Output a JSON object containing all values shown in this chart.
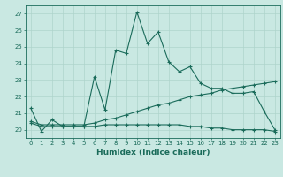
{
  "xlabel": "Humidex (Indice chaleur)",
  "xlim": [
    -0.5,
    23.5
  ],
  "ylim": [
    19.5,
    27.5
  ],
  "yticks": [
    20,
    21,
    22,
    23,
    24,
    25,
    26,
    27
  ],
  "xticks": [
    0,
    1,
    2,
    3,
    4,
    5,
    6,
    7,
    8,
    9,
    10,
    11,
    12,
    13,
    14,
    15,
    16,
    17,
    18,
    19,
    20,
    21,
    22,
    23
  ],
  "bg_color": "#c9e8e2",
  "line_color": "#1a6b5a",
  "grid_color": "#aed4cc",
  "line1_x": [
    0,
    1,
    2,
    3,
    4,
    5,
    6,
    7,
    8,
    9,
    10,
    11,
    12,
    13,
    14,
    15,
    16,
    17,
    18,
    19,
    20,
    21,
    22,
    23
  ],
  "line1_y": [
    21.3,
    19.9,
    20.6,
    20.2,
    20.2,
    20.2,
    23.2,
    21.2,
    24.8,
    24.6,
    27.1,
    25.2,
    25.9,
    24.1,
    23.5,
    23.8,
    22.8,
    22.5,
    22.5,
    22.2,
    22.2,
    22.3,
    21.1,
    20.0
  ],
  "line2_x": [
    0,
    1,
    2,
    3,
    4,
    5,
    6,
    7,
    8,
    9,
    10,
    11,
    12,
    13,
    14,
    15,
    16,
    17,
    18,
    19,
    20,
    21,
    22,
    23
  ],
  "line2_y": [
    20.5,
    20.3,
    20.3,
    20.3,
    20.3,
    20.3,
    20.4,
    20.6,
    20.7,
    20.9,
    21.1,
    21.3,
    21.5,
    21.6,
    21.8,
    22.0,
    22.1,
    22.2,
    22.4,
    22.5,
    22.6,
    22.7,
    22.8,
    22.9
  ],
  "line3_x": [
    0,
    1,
    2,
    3,
    4,
    5,
    6,
    7,
    8,
    9,
    10,
    11,
    12,
    13,
    14,
    15,
    16,
    17,
    18,
    19,
    20,
    21,
    22,
    23
  ],
  "line3_y": [
    20.4,
    20.2,
    20.2,
    20.2,
    20.2,
    20.2,
    20.2,
    20.3,
    20.3,
    20.3,
    20.3,
    20.3,
    20.3,
    20.3,
    20.3,
    20.2,
    20.2,
    20.1,
    20.1,
    20.0,
    20.0,
    20.0,
    20.0,
    19.9
  ]
}
